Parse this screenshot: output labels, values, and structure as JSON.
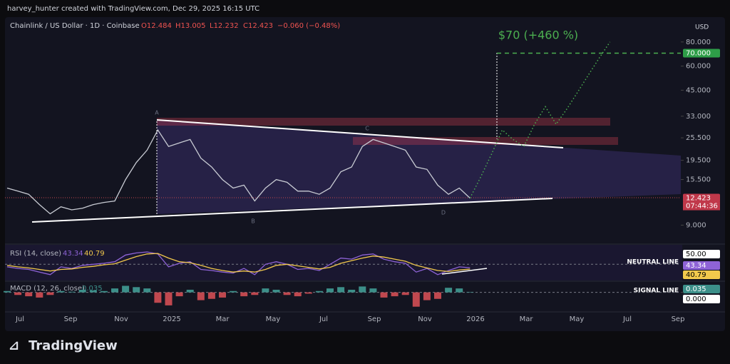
{
  "header": {
    "credit": "harvey_hunter created with TradingView.com, Dec 29, 2025 16:15 UTC"
  },
  "footer": {
    "brand": "TradingView"
  },
  "chart_data": [
    {
      "type": "line",
      "title": "Chainlink / US Dollar · 1D · Coinbase",
      "ohlc": [
        "O12.484",
        "H13.005",
        "L12.232",
        "C12.423",
        "−0.060 (−0.48%)"
      ],
      "currency": "USD",
      "log": true,
      "ylim": [
        7.3,
        104
      ],
      "yticks": [
        {
          "value": 80,
          "label": "80.000"
        },
        {
          "value": 60,
          "label": "60.000"
        },
        {
          "value": 45,
          "label": "45.000"
        },
        {
          "value": 33,
          "label": "33.000"
        },
        {
          "value": 25.5,
          "label": "25.500"
        },
        {
          "value": 19.5,
          "label": "19.500"
        },
        {
          "value": 15.5,
          "label": "15.500"
        },
        {
          "value": 9,
          "label": "9.000"
        }
      ],
      "x_axis_labels": [
        "Jul",
        "Sep",
        "Nov",
        "2025",
        "Mar",
        "May",
        "Jul",
        "Sep",
        "Nov",
        "2026",
        "Mar",
        "May",
        "Jul",
        "Sep"
      ],
      "series": [
        {
          "color": "#c8cbd3",
          "values": [
            14.0,
            13.5,
            13.0,
            11.5,
            10.3,
            11.2,
            10.8,
            11.0,
            11.5,
            11.8,
            12.0,
            15.5,
            19.0,
            22,
            28,
            23,
            24,
            25,
            20,
            18,
            15.5,
            14,
            14.5,
            12,
            14,
            15.5,
            15,
            13.5,
            13.5,
            13,
            14,
            17,
            18,
            23,
            25,
            24,
            23,
            22,
            18,
            17.5,
            14.5,
            13,
            14,
            12.423
          ]
        },
        {
          "color": "#4caf50",
          "values": [
            12.423,
            16,
            21,
            28,
            25,
            23,
            30,
            37,
            30,
            36,
            44,
            54,
            66,
            80
          ]
        }
      ],
      "last_price": 12.423,
      "countdown": "07:44:36",
      "pattern_points": [
        "A",
        "B",
        "C",
        "D"
      ],
      "target": {
        "value": 70,
        "label": "70.000",
        "text": "$70 (+460 %)"
      }
    },
    {
      "type": "line",
      "title": "RSI (14, close)",
      "value_labels": [
        "43.34",
        "40.79"
      ],
      "ylim": [
        20,
        85
      ],
      "neutral": {
        "value": 50,
        "label": "50.00",
        "text": "NEUTRAL LINE"
      },
      "series": [
        {
          "color": "#8e63d6",
          "values": [
            45,
            42,
            40,
            35,
            30,
            45,
            42,
            48,
            50,
            52,
            55,
            68,
            72,
            74,
            70,
            45,
            52,
            55,
            40,
            38,
            35,
            33,
            42,
            30,
            50,
            55,
            50,
            40,
            42,
            38,
            50,
            62,
            60,
            68,
            70,
            60,
            55,
            52,
            35,
            42,
            30,
            38,
            45,
            43.34
          ]
        },
        {
          "color": "#f2c94c",
          "values": [
            48,
            45,
            43,
            40,
            37,
            40,
            41,
            44,
            46,
            49,
            51,
            58,
            65,
            70,
            71,
            62,
            55,
            53,
            48,
            42,
            38,
            35,
            37,
            35,
            40,
            48,
            50,
            47,
            44,
            41,
            44,
            52,
            57,
            62,
            66,
            64,
            60,
            56,
            48,
            43,
            38,
            36,
            39,
            40.79
          ]
        }
      ]
    },
    {
      "type": "bar",
      "title": "MACD (12, 26, close)",
      "signal_text": "SIGNAL LINE",
      "ylim": [
        -1.5,
        0.8
      ],
      "yticks": [
        {
          "value": 0,
          "label": "0.000"
        }
      ],
      "colors": [
        "#3c8f89",
        "#c0484f"
      ],
      "values": [
        0.1,
        -0.2,
        -0.3,
        -0.4,
        -0.2,
        0.1,
        0.05,
        0.2,
        0.15,
        0.1,
        0.3,
        0.5,
        0.4,
        0.3,
        -0.8,
        -1.0,
        -0.3,
        0.2,
        -0.6,
        -0.5,
        -0.4,
        0.1,
        -0.3,
        -0.2,
        0.3,
        0.2,
        -0.2,
        -0.3,
        -0.1,
        0.1,
        0.3,
        0.4,
        0.2,
        0.45,
        0.3,
        -0.4,
        -0.3,
        -0.2,
        -1.1,
        -0.6,
        -0.5,
        0.35,
        0.3,
        0.035
      ]
    }
  ]
}
